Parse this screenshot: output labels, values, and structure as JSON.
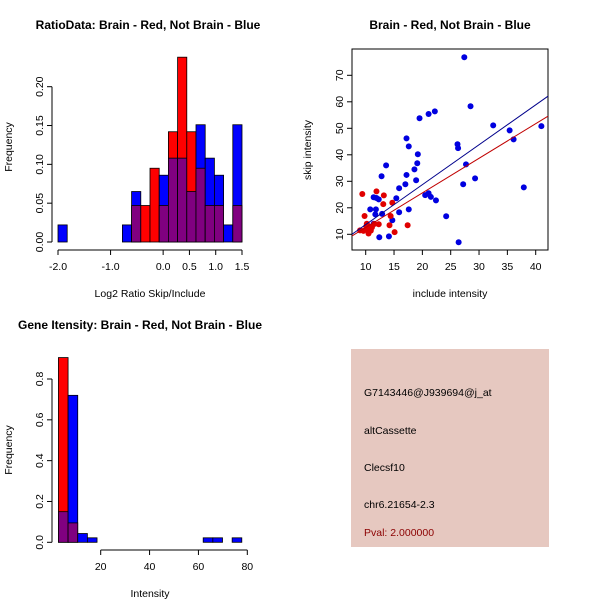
{
  "colors": {
    "red": "#ff0000",
    "blue": "#0000ff",
    "overlap": "#800080",
    "red_point": "#e00000",
    "blue_point": "#0000e0",
    "panel_bg": "#e6c8c0",
    "pval": "#8b0000"
  },
  "chart_data": [
    {
      "type": "bar",
      "title": "RatioData: Brain - Red, Not Brain - Blue",
      "xlabel": "Log2 Ratio Skip/Include",
      "ylabel": "Frequency",
      "xlim": [
        -2.0,
        1.5
      ],
      "ylim": [
        0,
        0.24
      ],
      "xticks": [
        "-2.0",
        "-1.0",
        "0.0",
        "0.5",
        "1.0",
        "1.5"
      ],
      "xtick_values": [
        -2.0,
        -1.0,
        0.0,
        0.5,
        1.0,
        1.5
      ],
      "yticks": [
        "0.00",
        "0.05",
        "0.10",
        "0.15",
        "0.20"
      ],
      "ytick_values": [
        0,
        0.05,
        0.1,
        0.15,
        0.2
      ],
      "bin_start": -2.0,
      "bin_width": 0.175,
      "series": [
        {
          "name": "Brain",
          "color": "red",
          "values": [
            0,
            0,
            0,
            0,
            0,
            0,
            0,
            0,
            0.047,
            0.047,
            0.095,
            0.047,
            0.142,
            0.238,
            0.142,
            0.095,
            0.047,
            0.047,
            0,
            0.047
          ]
        },
        {
          "name": "Not Brain",
          "color": "blue",
          "values": [
            0.022,
            0,
            0,
            0,
            0,
            0,
            0,
            0.022,
            0.065,
            0,
            0,
            0.086,
            0.108,
            0.108,
            0.065,
            0.151,
            0.108,
            0.086,
            0.022,
            0.151
          ]
        }
      ]
    },
    {
      "type": "scatter",
      "title": "Brain - Red, Not Brain - Blue",
      "xlabel": "include intensity",
      "ylabel": "skip intensity",
      "xlim": [
        7.7,
        42.2
      ],
      "ylim": [
        4.5,
        79
      ],
      "xticks": [
        "10",
        "15",
        "20",
        "25",
        "30",
        "35",
        "40"
      ],
      "xtick_values": [
        10,
        15,
        20,
        25,
        30,
        35,
        40
      ],
      "yticks": [
        "10",
        "20",
        "30",
        "40",
        "50",
        "60",
        "70"
      ],
      "ytick_values": [
        10,
        20,
        30,
        40,
        50,
        60,
        70
      ],
      "series": [
        {
          "name": "Not Brain",
          "color": "blue_point",
          "points": [
            [
              27.4,
              76.8
            ],
            [
              28.5,
              58.3
            ],
            [
              22.2,
              56.4
            ],
            [
              21.1,
              55.4
            ],
            [
              19.5,
              53.8
            ],
            [
              32.5,
              51.1
            ],
            [
              35.4,
              49.2
            ],
            [
              41.0,
              50.8
            ],
            [
              36.1,
              45.8
            ],
            [
              17.2,
              46.2
            ],
            [
              17.6,
              43.2
            ],
            [
              26.2,
              44.0
            ],
            [
              26.3,
              42.5
            ],
            [
              19.2,
              40.2
            ],
            [
              13.6,
              36.0
            ],
            [
              27.7,
              36.4
            ],
            [
              19.1,
              36.8
            ],
            [
              18.6,
              34.5
            ],
            [
              17.2,
              32.4
            ],
            [
              12.8,
              31.9
            ],
            [
              18.9,
              30.4
            ],
            [
              17.0,
              28.9
            ],
            [
              27.2,
              28.9
            ],
            [
              29.3,
              31.1
            ],
            [
              37.9,
              27.7
            ],
            [
              15.9,
              27.4
            ],
            [
              20.5,
              24.8
            ],
            [
              21.1,
              25.5
            ],
            [
              21.5,
              24.1
            ],
            [
              22.4,
              22.8
            ],
            [
              15.4,
              23.6
            ],
            [
              11.4,
              24.0
            ],
            [
              11.9,
              23.7
            ],
            [
              12.3,
              23.2
            ],
            [
              10.8,
              19.4
            ],
            [
              11.8,
              19.4
            ],
            [
              17.6,
              19.4
            ],
            [
              15.9,
              18.3
            ],
            [
              11.7,
              17.5
            ],
            [
              12.9,
              17.7
            ],
            [
              24.2,
              16.8
            ],
            [
              14.7,
              15.3
            ],
            [
              11.4,
              14.0
            ],
            [
              12.4,
              8.9
            ],
            [
              14.1,
              9.2
            ],
            [
              26.4,
              7.0
            ]
          ],
          "fit": {
            "slope": 1.51,
            "intercept": -1.6
          }
        },
        {
          "name": "Brain",
          "color": "red_point",
          "points": [
            [
              9.4,
              25.2
            ],
            [
              11.9,
              26.2
            ],
            [
              13.2,
              24.7
            ],
            [
              13.1,
              21.4
            ],
            [
              14.7,
              21.9
            ],
            [
              9.8,
              16.9
            ],
            [
              14.4,
              16.9
            ],
            [
              14.2,
              13.4
            ],
            [
              17.4,
              13.4
            ],
            [
              15.1,
              10.8
            ],
            [
              11.5,
              13.9
            ],
            [
              10.2,
              14.0
            ],
            [
              10.6,
              12.9
            ],
            [
              9.0,
              11.5
            ],
            [
              9.6,
              11.3
            ],
            [
              10.2,
              12.0
            ],
            [
              10.9,
              11.4
            ],
            [
              10.5,
              10.3
            ],
            [
              10.1,
              13.0
            ],
            [
              11.1,
              12.6
            ],
            [
              12.3,
              13.8
            ]
          ],
          "fit": {
            "slope": 1.31,
            "intercept": -0.7
          }
        }
      ]
    },
    {
      "type": "bar",
      "title": "Gene Itensity: Brain - Red, Not Brain - Blue",
      "xlabel": "Intensity",
      "ylabel": "Frequency",
      "xlim": [
        2.7,
        81.7
      ],
      "ylim": [
        0,
        0.905
      ],
      "xticks": [
        "20",
        "40",
        "60",
        "80"
      ],
      "xtick_values": [
        20,
        40,
        60,
        80
      ],
      "yticks": [
        "0.0",
        "0.2",
        "0.4",
        "0.6",
        "0.8"
      ],
      "ytick_values": [
        0,
        0.2,
        0.4,
        0.6,
        0.8
      ],
      "bin_start": 2.7,
      "bin_width": 3.95,
      "series": [
        {
          "name": "Brain",
          "color": "red",
          "values": [
            0.905,
            0.095,
            0,
            0,
            0,
            0,
            0,
            0,
            0,
            0,
            0,
            0,
            0,
            0,
            0,
            0,
            0,
            0,
            0,
            0
          ]
        },
        {
          "name": "Not Brain",
          "color": "blue",
          "values": [
            0.15,
            0.72,
            0.043,
            0.022,
            0,
            0,
            0,
            0,
            0,
            0,
            0,
            0,
            0,
            0,
            0,
            0.022,
            0.022,
            0,
            0.022,
            0
          ]
        }
      ]
    }
  ],
  "info_panel": {
    "probe": "G7143446@J939694@j_at",
    "event_type": "altCassette",
    "gene": "Clecsf10",
    "location": "chr6.21654-2.3",
    "pval": "Pval: 2.000000"
  }
}
